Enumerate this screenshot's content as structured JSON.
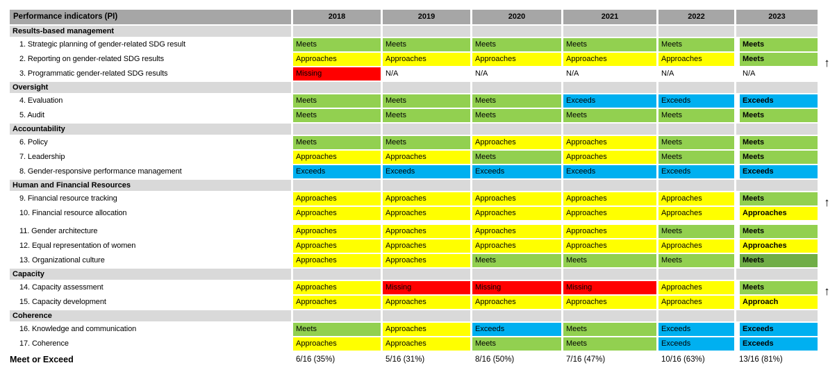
{
  "colors": {
    "meets": "#92D050",
    "meets_dark": "#70AD47",
    "approaches": "#FFFF00",
    "missing": "#FF0000",
    "exceeds": "#00B0F0",
    "na": "transparent",
    "header_bg": "#A6A6A6",
    "section_bg": "#D9D9D9"
  },
  "arrow_icon": "↑",
  "chart_data": {
    "type": "table",
    "title": "Performance indicators (PI)",
    "columns": [
      "2018",
      "2019",
      "2020",
      "2021",
      "2022",
      "2023"
    ],
    "sections": [
      {
        "title": "Results-based management",
        "rows": [
          {
            "label": "1. Strategic planning of gender-related SDG result",
            "cells": [
              {
                "text": "Meets",
                "status": "meets"
              },
              {
                "text": "Meets",
                "status": "meets"
              },
              {
                "text": "Meets",
                "status": "meets"
              },
              {
                "text": "Meets",
                "status": "meets"
              },
              {
                "text": "Meets",
                "status": "meets"
              },
              {
                "text": "Meets",
                "status": "meets"
              }
            ]
          },
          {
            "label": "2. Reporting on gender-related SDG results",
            "trend_arrow": true,
            "cells": [
              {
                "text": "Approaches",
                "status": "approaches"
              },
              {
                "text": "Approaches",
                "status": "approaches"
              },
              {
                "text": "Approaches",
                "status": "approaches"
              },
              {
                "text": "Approaches",
                "status": "approaches"
              },
              {
                "text": "Approaches",
                "status": "approaches"
              },
              {
                "text": "Meets",
                "status": "meets"
              }
            ]
          },
          {
            "label": "3. Programmatic gender-related SDG results",
            "cells": [
              {
                "text": "Missing",
                "status": "missing"
              },
              {
                "text": "N/A",
                "status": "na"
              },
              {
                "text": "N/A",
                "status": "na"
              },
              {
                "text": "N/A",
                "status": "na"
              },
              {
                "text": "N/A",
                "status": "na"
              },
              {
                "text": "N/A",
                "status": "na"
              }
            ]
          }
        ]
      },
      {
        "title": "Oversight",
        "rows": [
          {
            "label": "4. Evaluation",
            "cells": [
              {
                "text": "Meets",
                "status": "meets"
              },
              {
                "text": "Meets",
                "status": "meets"
              },
              {
                "text": "Meets",
                "status": "meets"
              },
              {
                "text": "Exceeds",
                "status": "exceeds"
              },
              {
                "text": "Exceeds",
                "status": "exceeds"
              },
              {
                "text": "Exceeds",
                "status": "exceeds"
              }
            ]
          },
          {
            "label": "5. Audit",
            "cells": [
              {
                "text": "Meets",
                "status": "meets"
              },
              {
                "text": "Meets",
                "status": "meets"
              },
              {
                "text": "Meets",
                "status": "meets"
              },
              {
                "text": "Meets",
                "status": "meets"
              },
              {
                "text": "Meets",
                "status": "meets"
              },
              {
                "text": "Meets",
                "status": "meets"
              }
            ]
          }
        ]
      },
      {
        "title": "Accountability",
        "rows": [
          {
            "label": "6. Policy",
            "cells": [
              {
                "text": "Meets",
                "status": "meets"
              },
              {
                "text": "Meets",
                "status": "meets"
              },
              {
                "text": "Approaches",
                "status": "approaches"
              },
              {
                "text": "Approaches",
                "status": "approaches"
              },
              {
                "text": "Meets",
                "status": "meets"
              },
              {
                "text": "Meets",
                "status": "meets"
              }
            ]
          },
          {
            "label": "7. Leadership",
            "cells": [
              {
                "text": "Approaches",
                "status": "approaches"
              },
              {
                "text": "Approaches",
                "status": "approaches"
              },
              {
                "text": "Meets",
                "status": "meets"
              },
              {
                "text": "Approaches",
                "status": "approaches"
              },
              {
                "text": "Meets",
                "status": "meets"
              },
              {
                "text": "Meets",
                "status": "meets"
              }
            ]
          },
          {
            "label": "8. Gender-responsive performance management",
            "cells": [
              {
                "text": "Exceeds",
                "status": "exceeds"
              },
              {
                "text": "Exceeds",
                "status": "exceeds"
              },
              {
                "text": "Exceeds",
                "status": "exceeds"
              },
              {
                "text": "Exceeds",
                "status": "exceeds"
              },
              {
                "text": "Exceeds",
                "status": "exceeds"
              },
              {
                "text": "Exceeds",
                "status": "exceeds"
              }
            ]
          }
        ]
      },
      {
        "title": "Human and Financial Resources",
        "rows": [
          {
            "label": "9. Financial resource tracking",
            "trend_arrow": true,
            "cells": [
              {
                "text": "Approaches",
                "status": "approaches"
              },
              {
                "text": "Approaches",
                "status": "approaches"
              },
              {
                "text": "Approaches",
                "status": "approaches"
              },
              {
                "text": "Approaches",
                "status": "approaches"
              },
              {
                "text": "Approaches",
                "status": "approaches"
              },
              {
                "text": "Meets",
                "status": "meets"
              }
            ]
          },
          {
            "label": "10. Financial resource allocation",
            "gap_after": true,
            "cells": [
              {
                "text": "Approaches",
                "status": "approaches"
              },
              {
                "text": "Approaches",
                "status": "approaches"
              },
              {
                "text": "Approaches",
                "status": "approaches"
              },
              {
                "text": "Approaches",
                "status": "approaches"
              },
              {
                "text": "Approaches",
                "status": "approaches"
              },
              {
                "text": "Approaches",
                "status": "approaches"
              }
            ]
          },
          {
            "label": "11. Gender architecture",
            "cells": [
              {
                "text": "Approaches",
                "status": "approaches"
              },
              {
                "text": "Approaches",
                "status": "approaches"
              },
              {
                "text": "Approaches",
                "status": "approaches"
              },
              {
                "text": "Approaches",
                "status": "approaches"
              },
              {
                "text": "Meets",
                "status": "meets"
              },
              {
                "text": "Meets",
                "status": "meets"
              }
            ]
          },
          {
            "label": "12. Equal representation of women",
            "cells": [
              {
                "text": "Approaches",
                "status": "approaches"
              },
              {
                "text": "Approaches",
                "status": "approaches"
              },
              {
                "text": "Approaches",
                "status": "approaches"
              },
              {
                "text": "Approaches",
                "status": "approaches"
              },
              {
                "text": "Approaches",
                "status": "approaches"
              },
              {
                "text": "Approaches",
                "status": "approaches"
              }
            ]
          },
          {
            "label": "13. Organizational culture",
            "cells": [
              {
                "text": "Approaches",
                "status": "approaches"
              },
              {
                "text": "Approaches",
                "status": "approaches"
              },
              {
                "text": "Meets",
                "status": "meets"
              },
              {
                "text": "Meets",
                "status": "meets"
              },
              {
                "text": "Meets",
                "status": "meets"
              },
              {
                "text": "Meets",
                "status": "meets_dark"
              }
            ]
          }
        ]
      },
      {
        "title": "Capacity",
        "rows": [
          {
            "label": "14. Capacity assessment",
            "trend_arrow": true,
            "cells": [
              {
                "text": "Approaches",
                "status": "approaches"
              },
              {
                "text": "Missing",
                "status": "missing"
              },
              {
                "text": "Missing",
                "status": "missing"
              },
              {
                "text": "Missing",
                "status": "missing"
              },
              {
                "text": "Approaches",
                "status": "approaches"
              },
              {
                "text": "Meets",
                "status": "meets"
              }
            ]
          },
          {
            "label": "15. Capacity development",
            "cells": [
              {
                "text": "Approaches",
                "status": "approaches"
              },
              {
                "text": "Approaches",
                "status": "approaches"
              },
              {
                "text": "Approaches",
                "status": "approaches"
              },
              {
                "text": "Approaches",
                "status": "approaches"
              },
              {
                "text": "Approaches",
                "status": "approaches"
              },
              {
                "text": "Approach",
                "status": "approaches"
              }
            ]
          }
        ]
      },
      {
        "title": "Coherence",
        "rows": [
          {
            "label": "16. Knowledge and communication",
            "cells": [
              {
                "text": "Meets",
                "status": "meets"
              },
              {
                "text": "Approaches",
                "status": "approaches"
              },
              {
                "text": "Exceeds",
                "status": "exceeds"
              },
              {
                "text": "Meets",
                "status": "meets"
              },
              {
                "text": "Exceeds",
                "status": "exceeds"
              },
              {
                "text": "Exceeds",
                "status": "exceeds"
              }
            ]
          },
          {
            "label": "17. Coherence",
            "cells": [
              {
                "text": "Approaches",
                "status": "approaches"
              },
              {
                "text": "Approaches",
                "status": "approaches"
              },
              {
                "text": "Meets",
                "status": "meets"
              },
              {
                "text": "Meets",
                "status": "meets"
              },
              {
                "text": "Exceeds",
                "status": "exceeds"
              },
              {
                "text": "Exceeds",
                "status": "exceeds"
              }
            ]
          }
        ]
      }
    ],
    "footer": {
      "label": "Meet or Exceed",
      "values": [
        "6/16 (35%)",
        "5/16 (31%)",
        "8/16 (50%)",
        "7/16 (47%)",
        "10/16 (63%)",
        "13/16 (81%)"
      ]
    }
  }
}
